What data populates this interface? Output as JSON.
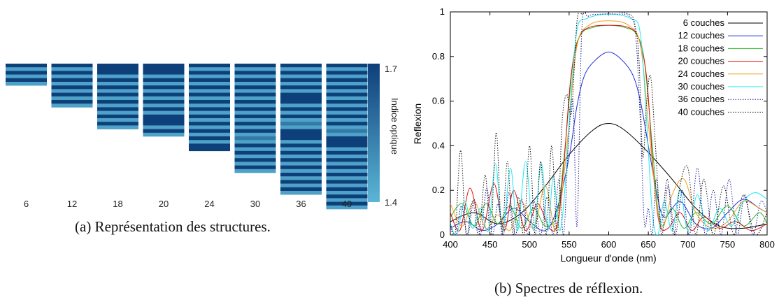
{
  "left_panel": {
    "caption": "(a) Représentation des structures.",
    "colorbar": {
      "label": "Indice optique",
      "max_label": "1.7",
      "min_label": "1.4",
      "min": 1.4,
      "max": 1.7,
      "color_high": "#0d3f7a",
      "color_low": "#5bb5d6"
    },
    "structures": [
      {
        "label": "6",
        "layers": [
          1.7,
          1.45,
          1.7,
          1.45,
          1.7,
          1.45
        ]
      },
      {
        "label": "12",
        "layers": [
          1.7,
          1.45,
          1.7,
          1.45,
          1.7,
          1.45,
          1.7,
          1.45,
          1.7,
          1.45,
          1.7,
          1.45
        ]
      },
      {
        "label": "18",
        "layers": [
          1.7,
          1.7,
          1.7,
          1.45,
          1.7,
          1.45,
          1.7,
          1.45,
          1.7,
          1.45,
          1.7,
          1.45,
          1.7,
          1.45,
          1.7,
          1.45,
          1.7,
          1.45
        ]
      },
      {
        "label": "20",
        "layers": [
          1.7,
          1.7,
          1.7,
          1.45,
          1.7,
          1.45,
          1.7,
          1.45,
          1.7,
          1.45,
          1.7,
          1.45,
          1.7,
          1.45,
          1.7,
          1.7,
          1.7,
          1.45,
          1.7,
          1.45
        ]
      },
      {
        "label": "24",
        "layers": [
          1.7,
          1.45,
          1.7,
          1.45,
          1.7,
          1.45,
          1.7,
          1.45,
          1.7,
          1.45,
          1.7,
          1.45,
          1.7,
          1.45,
          1.7,
          1.45,
          1.7,
          1.45,
          1.7,
          1.45,
          1.7,
          1.45,
          1.7,
          1.7
        ]
      },
      {
        "label": "30",
        "layers": [
          1.7,
          1.45,
          1.7,
          1.45,
          1.7,
          1.45,
          1.7,
          1.45,
          1.7,
          1.45,
          1.7,
          1.45,
          1.7,
          1.45,
          1.7,
          1.45,
          1.7,
          1.45,
          1.7,
          1.45,
          1.55,
          1.45,
          1.7,
          1.45,
          1.7,
          1.45,
          1.7,
          1.45,
          1.7,
          1.45
        ]
      },
      {
        "label": "36",
        "layers": [
          1.7,
          1.45,
          1.7,
          1.45,
          1.7,
          1.45,
          1.7,
          1.45,
          1.7,
          1.7,
          1.7,
          1.45,
          1.7,
          1.45,
          1.7,
          1.45,
          1.55,
          1.45,
          1.7,
          1.7,
          1.7,
          1.45,
          1.7,
          1.45,
          1.7,
          1.45,
          1.7,
          1.45,
          1.7,
          1.45,
          1.7,
          1.45,
          1.7,
          1.45,
          1.7,
          1.45
        ]
      },
      {
        "label": "40",
        "layers": [
          1.7,
          1.45,
          1.7,
          1.45,
          1.7,
          1.45,
          1.7,
          1.45,
          1.7,
          1.45,
          1.7,
          1.45,
          1.7,
          1.45,
          1.7,
          1.45,
          1.7,
          1.45,
          1.55,
          1.45,
          1.7,
          1.7,
          1.7,
          1.45,
          1.7,
          1.45,
          1.7,
          1.45,
          1.7,
          1.45,
          1.7,
          1.45,
          1.7,
          1.45,
          1.7,
          1.45,
          1.7,
          1.45,
          1.7,
          1.45
        ]
      }
    ]
  },
  "right_panel": {
    "caption": "(b) Spectres de réflexion.",
    "chart_data": {
      "type": "line",
      "xlabel": "Longueur d'onde (nm)",
      "ylabel": "Reflexion",
      "xlim": [
        400,
        800
      ],
      "ylim": [
        0,
        1
      ],
      "xticks": [
        "400",
        "450",
        "500",
        "550",
        "600",
        "650",
        "700",
        "750",
        "800"
      ],
      "yticks": [
        "0",
        "0.2",
        "0.4",
        "0.6",
        "0.8",
        "1"
      ],
      "grid": false,
      "legend_position": "top-right",
      "series": [
        {
          "name": "6 couches",
          "color": "#000000",
          "dash": "solid",
          "x": [
            400,
            430,
            460,
            490,
            520,
            550,
            580,
            600,
            620,
            650,
            680,
            710,
            740,
            770,
            800
          ],
          "y": [
            0.06,
            0.1,
            0.05,
            0.1,
            0.22,
            0.36,
            0.47,
            0.5,
            0.47,
            0.37,
            0.25,
            0.12,
            0.04,
            0.03,
            0.05
          ]
        },
        {
          "name": "12 couches",
          "color": "#1f2fd8",
          "dash": "solid",
          "x": [
            400,
            420,
            440,
            460,
            480,
            500,
            520,
            535,
            550,
            560,
            570,
            585,
            600,
            615,
            630,
            640,
            650,
            660,
            670,
            690,
            710,
            730,
            750,
            770,
            790,
            800
          ],
          "y": [
            0.03,
            0.06,
            0.02,
            0.05,
            0.12,
            0.06,
            0.02,
            0.12,
            0.35,
            0.58,
            0.72,
            0.79,
            0.82,
            0.79,
            0.72,
            0.6,
            0.4,
            0.2,
            0.08,
            0.15,
            0.05,
            0.03,
            0.1,
            0.16,
            0.12,
            0.1
          ]
        },
        {
          "name": "18 couches",
          "color": "#22bb22",
          "dash": "solid",
          "x": [
            400,
            415,
            430,
            445,
            460,
            475,
            490,
            505,
            520,
            535,
            545,
            555,
            565,
            580,
            600,
            620,
            635,
            645,
            655,
            665,
            680,
            695,
            710,
            730,
            750,
            770,
            790,
            800
          ],
          "y": [
            0.08,
            0.14,
            0.04,
            0.14,
            0.05,
            0.13,
            0.03,
            0.12,
            0.04,
            0.1,
            0.4,
            0.78,
            0.9,
            0.93,
            0.94,
            0.93,
            0.9,
            0.78,
            0.4,
            0.05,
            0.12,
            0.03,
            0.1,
            0.05,
            0.13,
            0.04,
            0.1,
            0.05
          ]
        },
        {
          "name": "20 couches",
          "color": "#dd1111",
          "dash": "solid",
          "x": [
            400,
            412,
            425,
            440,
            455,
            468,
            480,
            495,
            510,
            525,
            535,
            543,
            552,
            562,
            575,
            600,
            625,
            638,
            648,
            656,
            664,
            675,
            690,
            705,
            720,
            740,
            760,
            780,
            800
          ],
          "y": [
            0.1,
            0.02,
            0.21,
            0.02,
            0.23,
            0.02,
            0.2,
            0.02,
            0.14,
            0.03,
            0.05,
            0.3,
            0.7,
            0.88,
            0.93,
            0.94,
            0.93,
            0.88,
            0.7,
            0.3,
            0.05,
            0.03,
            0.1,
            0.02,
            0.08,
            0.03,
            0.06,
            0.02,
            0.05
          ]
        },
        {
          "name": "24 couches",
          "color": "#f0a020",
          "dash": "solid",
          "x": [
            400,
            415,
            430,
            445,
            460,
            475,
            490,
            505,
            520,
            532,
            540,
            550,
            560,
            575,
            600,
            625,
            640,
            650,
            660,
            668,
            680,
            695,
            710,
            730,
            750,
            770,
            790,
            800
          ],
          "y": [
            0.14,
            0.04,
            0.15,
            0.03,
            0.09,
            0.02,
            0.15,
            0.03,
            0.22,
            0.02,
            0.15,
            0.5,
            0.85,
            0.94,
            0.96,
            0.94,
            0.85,
            0.5,
            0.15,
            0.03,
            0.18,
            0.25,
            0.1,
            0.03,
            0.06,
            0.15,
            0.12,
            0.1
          ]
        },
        {
          "name": "30 couches",
          "color": "#22e8ee",
          "dash": "solid",
          "x": [
            400,
            408,
            418,
            428,
            438,
            448,
            457,
            466,
            476,
            485,
            495,
            505,
            515,
            523,
            530,
            538,
            545,
            552,
            560,
            572,
            600,
            628,
            640,
            648,
            655,
            662,
            670,
            680,
            690,
            700,
            712,
            725,
            740,
            755,
            770,
            785,
            800
          ],
          "y": [
            0.05,
            0.0,
            0.15,
            0.03,
            0.12,
            0.02,
            0.32,
            0.02,
            0.3,
            0.02,
            0.33,
            0.02,
            0.32,
            0.02,
            0.26,
            0.02,
            0.22,
            0.6,
            0.92,
            0.97,
            0.99,
            0.97,
            0.9,
            0.5,
            0.1,
            0.0,
            0.15,
            0.02,
            0.2,
            0.02,
            0.18,
            0.02,
            0.12,
            0.04,
            0.15,
            0.19,
            0.16
          ]
        },
        {
          "name": "36 couches",
          "color": "#1a1a9a",
          "dash": "dotted",
          "x": [
            400,
            407,
            414,
            422,
            430,
            438,
            446,
            453,
            460,
            467,
            474,
            482,
            490,
            498,
            506,
            514,
            522,
            530,
            537,
            543,
            549,
            555,
            560,
            566,
            574,
            590,
            610,
            626,
            634,
            640,
            645,
            650,
            655,
            660,
            667,
            675,
            684,
            693,
            702,
            712,
            722,
            732,
            742,
            752,
            762,
            772,
            782,
            792,
            800
          ],
          "y": [
            0.05,
            0.0,
            0.13,
            0.0,
            0.16,
            0.0,
            0.21,
            0.0,
            0.14,
            0.0,
            0.19,
            0.0,
            0.16,
            0.0,
            0.15,
            0.0,
            0.17,
            0.0,
            0.25,
            0.0,
            0.4,
            0.6,
            0.04,
            0.92,
            0.98,
            0.99,
            0.99,
            0.98,
            0.9,
            0.5,
            0.05,
            0.12,
            0.0,
            0.25,
            0.0,
            0.22,
            0.0,
            0.2,
            0.0,
            0.3,
            0.0,
            0.2,
            0.0,
            0.25,
            0.0,
            0.18,
            0.0,
            0.15,
            0.1
          ]
        },
        {
          "name": "40 couches",
          "color": "#111111",
          "dash": "dotted",
          "x": [
            400,
            406,
            413,
            420,
            428,
            436,
            444,
            451,
            458,
            465,
            472,
            479,
            486,
            493,
            500,
            507,
            514,
            521,
            528,
            535,
            541,
            547,
            553,
            560,
            567,
            575,
            590,
            610,
            625,
            632,
            638,
            643,
            648,
            653,
            659,
            666,
            674,
            682,
            690,
            700,
            710,
            720,
            732,
            745,
            758,
            770,
            785,
            800
          ],
          "y": [
            0.05,
            0.0,
            0.38,
            0.0,
            0.15,
            0.0,
            0.27,
            0.0,
            0.46,
            0.0,
            0.33,
            0.0,
            0.17,
            0.0,
            0.4,
            0.0,
            0.33,
            0.0,
            0.4,
            0.0,
            0.5,
            0.63,
            0.55,
            0.96,
            0.99,
            1.0,
            1.0,
            1.0,
            0.99,
            0.96,
            0.8,
            0.35,
            0.6,
            0.71,
            0.4,
            0.05,
            0.25,
            0.0,
            0.22,
            0.3,
            0.0,
            0.25,
            0.0,
            0.22,
            0.0,
            0.18,
            0.0,
            0.1
          ]
        }
      ]
    }
  }
}
